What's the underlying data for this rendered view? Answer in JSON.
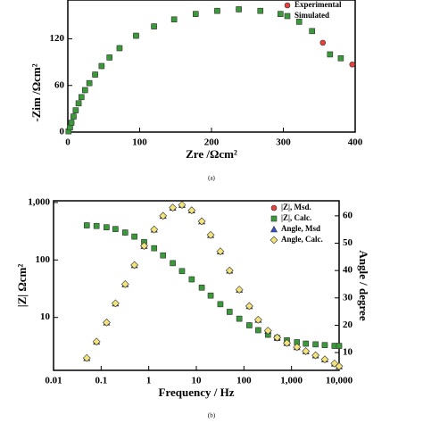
{
  "chart_data": [
    {
      "type": "scatter",
      "caption": "(a)",
      "xlabel": "Zre /Ωcm²",
      "ylabel": "-Zim /Ωcm²",
      "xlim": [
        0,
        400
      ],
      "ylim": [
        0,
        170
      ],
      "xticks": [
        0,
        100,
        200,
        300,
        400
      ],
      "yticks": [
        0,
        60,
        120
      ],
      "log_x": false,
      "log_y": false,
      "legend": "upper right",
      "series": [
        {
          "name": "Experimental",
          "color": "#e8413c",
          "marker": "circle",
          "x": [
            1,
            3,
            5,
            8,
            11,
            15,
            19,
            24,
            30,
            38,
            47,
            58,
            72,
            95,
            120,
            148,
            178,
            208,
            238,
            268,
            296,
            322,
            340,
            355,
            396
          ],
          "values": [
            1,
            6,
            12,
            20,
            28,
            37,
            45,
            54,
            63,
            74,
            85,
            96,
            108,
            124,
            136,
            145,
            152,
            156,
            158,
            156,
            152,
            142,
            130,
            115,
            87
          ]
        },
        {
          "name": "Simulated",
          "color": "#3a9a3a",
          "marker": "square",
          "x": [
            1,
            3,
            5,
            8,
            11,
            15,
            19,
            24,
            30,
            38,
            47,
            58,
            72,
            95,
            120,
            148,
            178,
            208,
            238,
            268,
            296,
            322,
            340,
            365,
            380
          ],
          "values": [
            1,
            6,
            12,
            20,
            28,
            37,
            45,
            54,
            63,
            74,
            85,
            96,
            108,
            124,
            136,
            145,
            152,
            156,
            158,
            156,
            152,
            142,
            130,
            100,
            95
          ]
        }
      ]
    },
    {
      "type": "scatter",
      "caption": "(b)",
      "xlabel": "Frequency / Hz",
      "ylabel": "|Z| Ωcm²",
      "y2label": "Angle / degree",
      "xlim": [
        0.01,
        10000
      ],
      "ylim": [
        1.2,
        1070
      ],
      "y2lim": [
        3.5,
        65.5
      ],
      "xticks": [
        0.01,
        0.1,
        1,
        10,
        100,
        {
          "value": 1000,
          "label": "1,000"
        },
        {
          "value": 10000,
          "label": "10,000"
        }
      ],
      "yticks": [
        10,
        100,
        {
          "value": 1000,
          "label": "1,000"
        }
      ],
      "y2ticks": [
        10,
        20,
        30,
        40,
        50,
        60
      ],
      "log_x": true,
      "log_y": true,
      "legend": "upper right",
      "x": [
        0.05,
        0.08,
        0.13,
        0.2,
        0.32,
        0.5,
        0.8,
        1.3,
        2,
        3.2,
        5,
        8,
        13,
        20,
        32,
        50,
        80,
        130,
        200,
        320,
        500,
        800,
        1300,
        2000,
        3200,
        5000,
        8000,
        10000
      ],
      "series": [
        {
          "name": "|Z|, Msd.",
          "color": "#e8413c",
          "marker": "circle",
          "values": [
            400,
            390,
            370,
            345,
            300,
            255,
            205,
            160,
            120,
            88,
            64,
            46,
            33,
            24,
            17,
            12.5,
            9.5,
            7.3,
            6,
            5,
            4.4,
            4,
            3.7,
            3.5,
            3.4,
            3.3,
            3.2,
            3.2
          ]
        },
        {
          "name": "|Z|, Calc.",
          "color": "#3a9a3a",
          "marker": "square",
          "values": [
            400,
            390,
            370,
            345,
            300,
            255,
            205,
            160,
            120,
            88,
            64,
            46,
            33,
            24,
            17,
            12.5,
            9.5,
            7.3,
            6,
            5,
            4.4,
            4,
            3.7,
            3.5,
            3.4,
            3.3,
            3.2,
            3.2
          ]
        },
        {
          "name": "Angle, Msd",
          "color": "#3b4fc4",
          "marker": "triangle",
          "axis": "y2",
          "values": [
            8,
            14,
            21,
            28,
            35,
            42,
            49,
            55,
            60,
            63,
            64,
            62,
            58,
            53,
            47,
            40,
            33,
            27,
            22,
            18,
            15.5,
            13.5,
            12,
            10.5,
            9,
            7.5,
            6,
            5
          ]
        },
        {
          "name": "Angle, Calc.",
          "color": "#f2e47a",
          "marker": "diamond",
          "axis": "y2",
          "values": [
            8,
            14,
            21,
            28,
            35,
            42,
            49,
            55,
            60,
            63,
            64,
            62,
            58,
            53,
            47,
            40,
            33,
            27,
            22,
            18,
            15.5,
            13.5,
            12,
            10.5,
            9,
            7.5,
            6,
            5
          ]
        }
      ]
    }
  ]
}
